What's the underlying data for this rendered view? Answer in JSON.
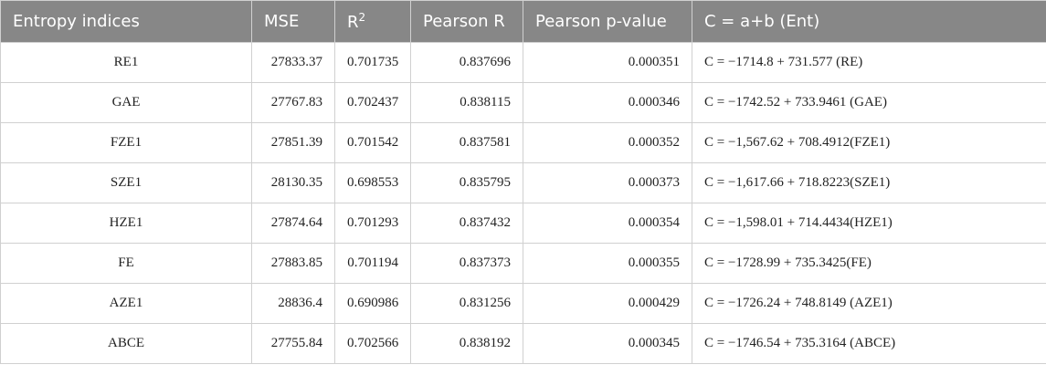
{
  "table": {
    "header": [
      "Entropy indices",
      "MSE",
      {
        "text": "R",
        "superscript": "2"
      },
      "Pearson R",
      "Pearson p-value",
      "C = a+b (Ent)"
    ],
    "rows": [
      [
        "RE1",
        "27833.37",
        "0.701735",
        "0.837696",
        "0.000351",
        "C = −1714.8 + 731.577 (RE)"
      ],
      [
        "GAE",
        "27767.83",
        "0.702437",
        "0.838115",
        "0.000346",
        "C = −1742.52 + 733.9461 (GAE)"
      ],
      [
        "FZE1",
        "27851.39",
        "0.701542",
        "0.837581",
        "0.000352",
        "C = −1,567.62 + 708.4912(FZE1)"
      ],
      [
        "SZE1",
        "28130.35",
        "0.698553",
        "0.835795",
        "0.000373",
        "C = −1,617.66 + 718.8223(SZE1)"
      ],
      [
        "HZE1",
        "27874.64",
        "0.701293",
        "0.837432",
        "0.000354",
        "C = −1,598.01 + 714.4434(HZE1)"
      ],
      [
        "FE",
        "27883.85",
        "0.701194",
        "0.837373",
        "0.000355",
        "C = −1728.99 + 735.3425(FE)"
      ],
      [
        "AZE1",
        "28836.4",
        "0.690986",
        "0.831256",
        "0.000429",
        "C = −1726.24 + 748.8149 (AZE1)"
      ],
      [
        "ABCE",
        "27755.84",
        "0.702566",
        "0.838192",
        "0.000345",
        "C = −1746.54 + 735.3164 (ABCE)"
      ]
    ]
  }
}
